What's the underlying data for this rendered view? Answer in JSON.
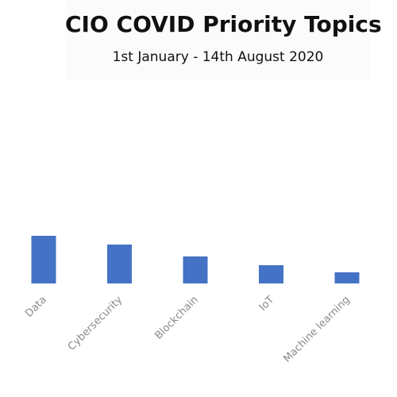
{
  "chart_data": {
    "type": "bar",
    "title": "CIO COVID Priority Topics",
    "subtitle": "1st January - 14th August 2020",
    "categories": [
      "Data",
      "Cybersecurity",
      "Blockchain",
      "IoT",
      "Machine learning"
    ],
    "values": [
      60,
      49,
      34,
      23,
      14
    ],
    "ylim": [
      0,
      100
    ],
    "grid": false,
    "bar_color": "#4472c4",
    "label_color": "#8a8a8a"
  }
}
